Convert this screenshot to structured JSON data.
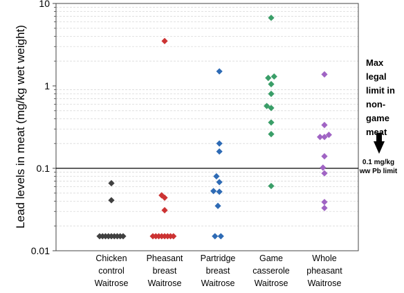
{
  "chart_data": {
    "type": "scatter",
    "ylabel": "Lead levels in meat (mg/kg wet weight)",
    "yscale": "log",
    "ylim": [
      0.01,
      10
    ],
    "yticks": [
      {
        "value": 0.01,
        "label": "0.01"
      },
      {
        "value": 0.1,
        "label": "0.1"
      },
      {
        "value": 1,
        "label": "1"
      },
      {
        "value": 10,
        "label": "10"
      }
    ],
    "grid": true,
    "reference_line": 0.1,
    "categories": [
      [
        "Chicken",
        "control",
        "Waitrose"
      ],
      [
        "Pheasant",
        "breast",
        "Waitrose"
      ],
      [
        "Partridge",
        "breast",
        "Waitrose"
      ],
      [
        "Game",
        "casserole",
        "Waitrose"
      ],
      [
        "Whole",
        "pheasant",
        "Waitrose"
      ]
    ],
    "series": [
      {
        "color": "#404040",
        "points": [
          {
            "o": -0.4,
            "v": 0.015
          },
          {
            "o": -0.3,
            "v": 0.015
          },
          {
            "o": -0.2,
            "v": 0.015
          },
          {
            "o": -0.1,
            "v": 0.015
          },
          {
            "o": 0.0,
            "v": 0.015
          },
          {
            "o": 0.1,
            "v": 0.015
          },
          {
            "o": 0.2,
            "v": 0.015
          },
          {
            "o": 0.3,
            "v": 0.015
          },
          {
            "o": 0.4,
            "v": 0.015
          },
          {
            "o": 0.0,
            "v": 0.041
          },
          {
            "o": 0.0,
            "v": 0.066
          }
        ]
      },
      {
        "color": "#cc3333",
        "points": [
          {
            "o": -0.4,
            "v": 0.015
          },
          {
            "o": -0.3,
            "v": 0.015
          },
          {
            "o": -0.2,
            "v": 0.015
          },
          {
            "o": -0.1,
            "v": 0.015
          },
          {
            "o": 0.0,
            "v": 0.015
          },
          {
            "o": 0.1,
            "v": 0.015
          },
          {
            "o": 0.2,
            "v": 0.015
          },
          {
            "o": 0.3,
            "v": 0.015
          },
          {
            "o": -0.1,
            "v": 0.047
          },
          {
            "o": 0.0,
            "v": 0.044
          },
          {
            "o": 0.0,
            "v": 0.031
          },
          {
            "o": 0.0,
            "v": 3.5
          }
        ]
      },
      {
        "color": "#2e6bb5",
        "points": [
          {
            "o": -0.1,
            "v": 0.015
          },
          {
            "o": 0.1,
            "v": 0.015
          },
          {
            "o": 0.0,
            "v": 0.035
          },
          {
            "o": -0.15,
            "v": 0.053
          },
          {
            "o": 0.05,
            "v": 0.052
          },
          {
            "o": 0.05,
            "v": 0.068
          },
          {
            "o": -0.05,
            "v": 0.08
          },
          {
            "o": 0.05,
            "v": 0.16
          },
          {
            "o": 0.05,
            "v": 0.2
          },
          {
            "o": 0.05,
            "v": 1.5
          }
        ]
      },
      {
        "color": "#3a9e68",
        "points": [
          {
            "o": 0.0,
            "v": 0.061
          },
          {
            "o": 0.0,
            "v": 0.26
          },
          {
            "o": 0.0,
            "v": 0.36
          },
          {
            "o": -0.15,
            "v": 0.57
          },
          {
            "o": 0.0,
            "v": 0.54
          },
          {
            "o": 0.0,
            "v": 0.8
          },
          {
            "o": -0.1,
            "v": 1.25
          },
          {
            "o": 0.0,
            "v": 1.05
          },
          {
            "o": 0.1,
            "v": 1.3
          },
          {
            "o": 0.0,
            "v": 6.7
          }
        ]
      },
      {
        "color": "#a064c4",
        "points": [
          {
            "o": 0.0,
            "v": 0.033
          },
          {
            "o": 0.0,
            "v": 0.039
          },
          {
            "o": 0.0,
            "v": 0.087
          },
          {
            "o": -0.05,
            "v": 0.102
          },
          {
            "o": 0.0,
            "v": 0.14
          },
          {
            "o": -0.15,
            "v": 0.24
          },
          {
            "o": 0.0,
            "v": 0.24
          },
          {
            "o": 0.15,
            "v": 0.255
          },
          {
            "o": 0.0,
            "v": 0.335
          },
          {
            "o": 0.0,
            "v": 1.38
          }
        ]
      }
    ]
  },
  "annotation": {
    "lines": [
      "Max",
      "legal",
      "limit in",
      "non-",
      "game",
      "meat"
    ],
    "limit_lines": [
      "0.1 mg/kg",
      "ww Pb limit"
    ]
  }
}
